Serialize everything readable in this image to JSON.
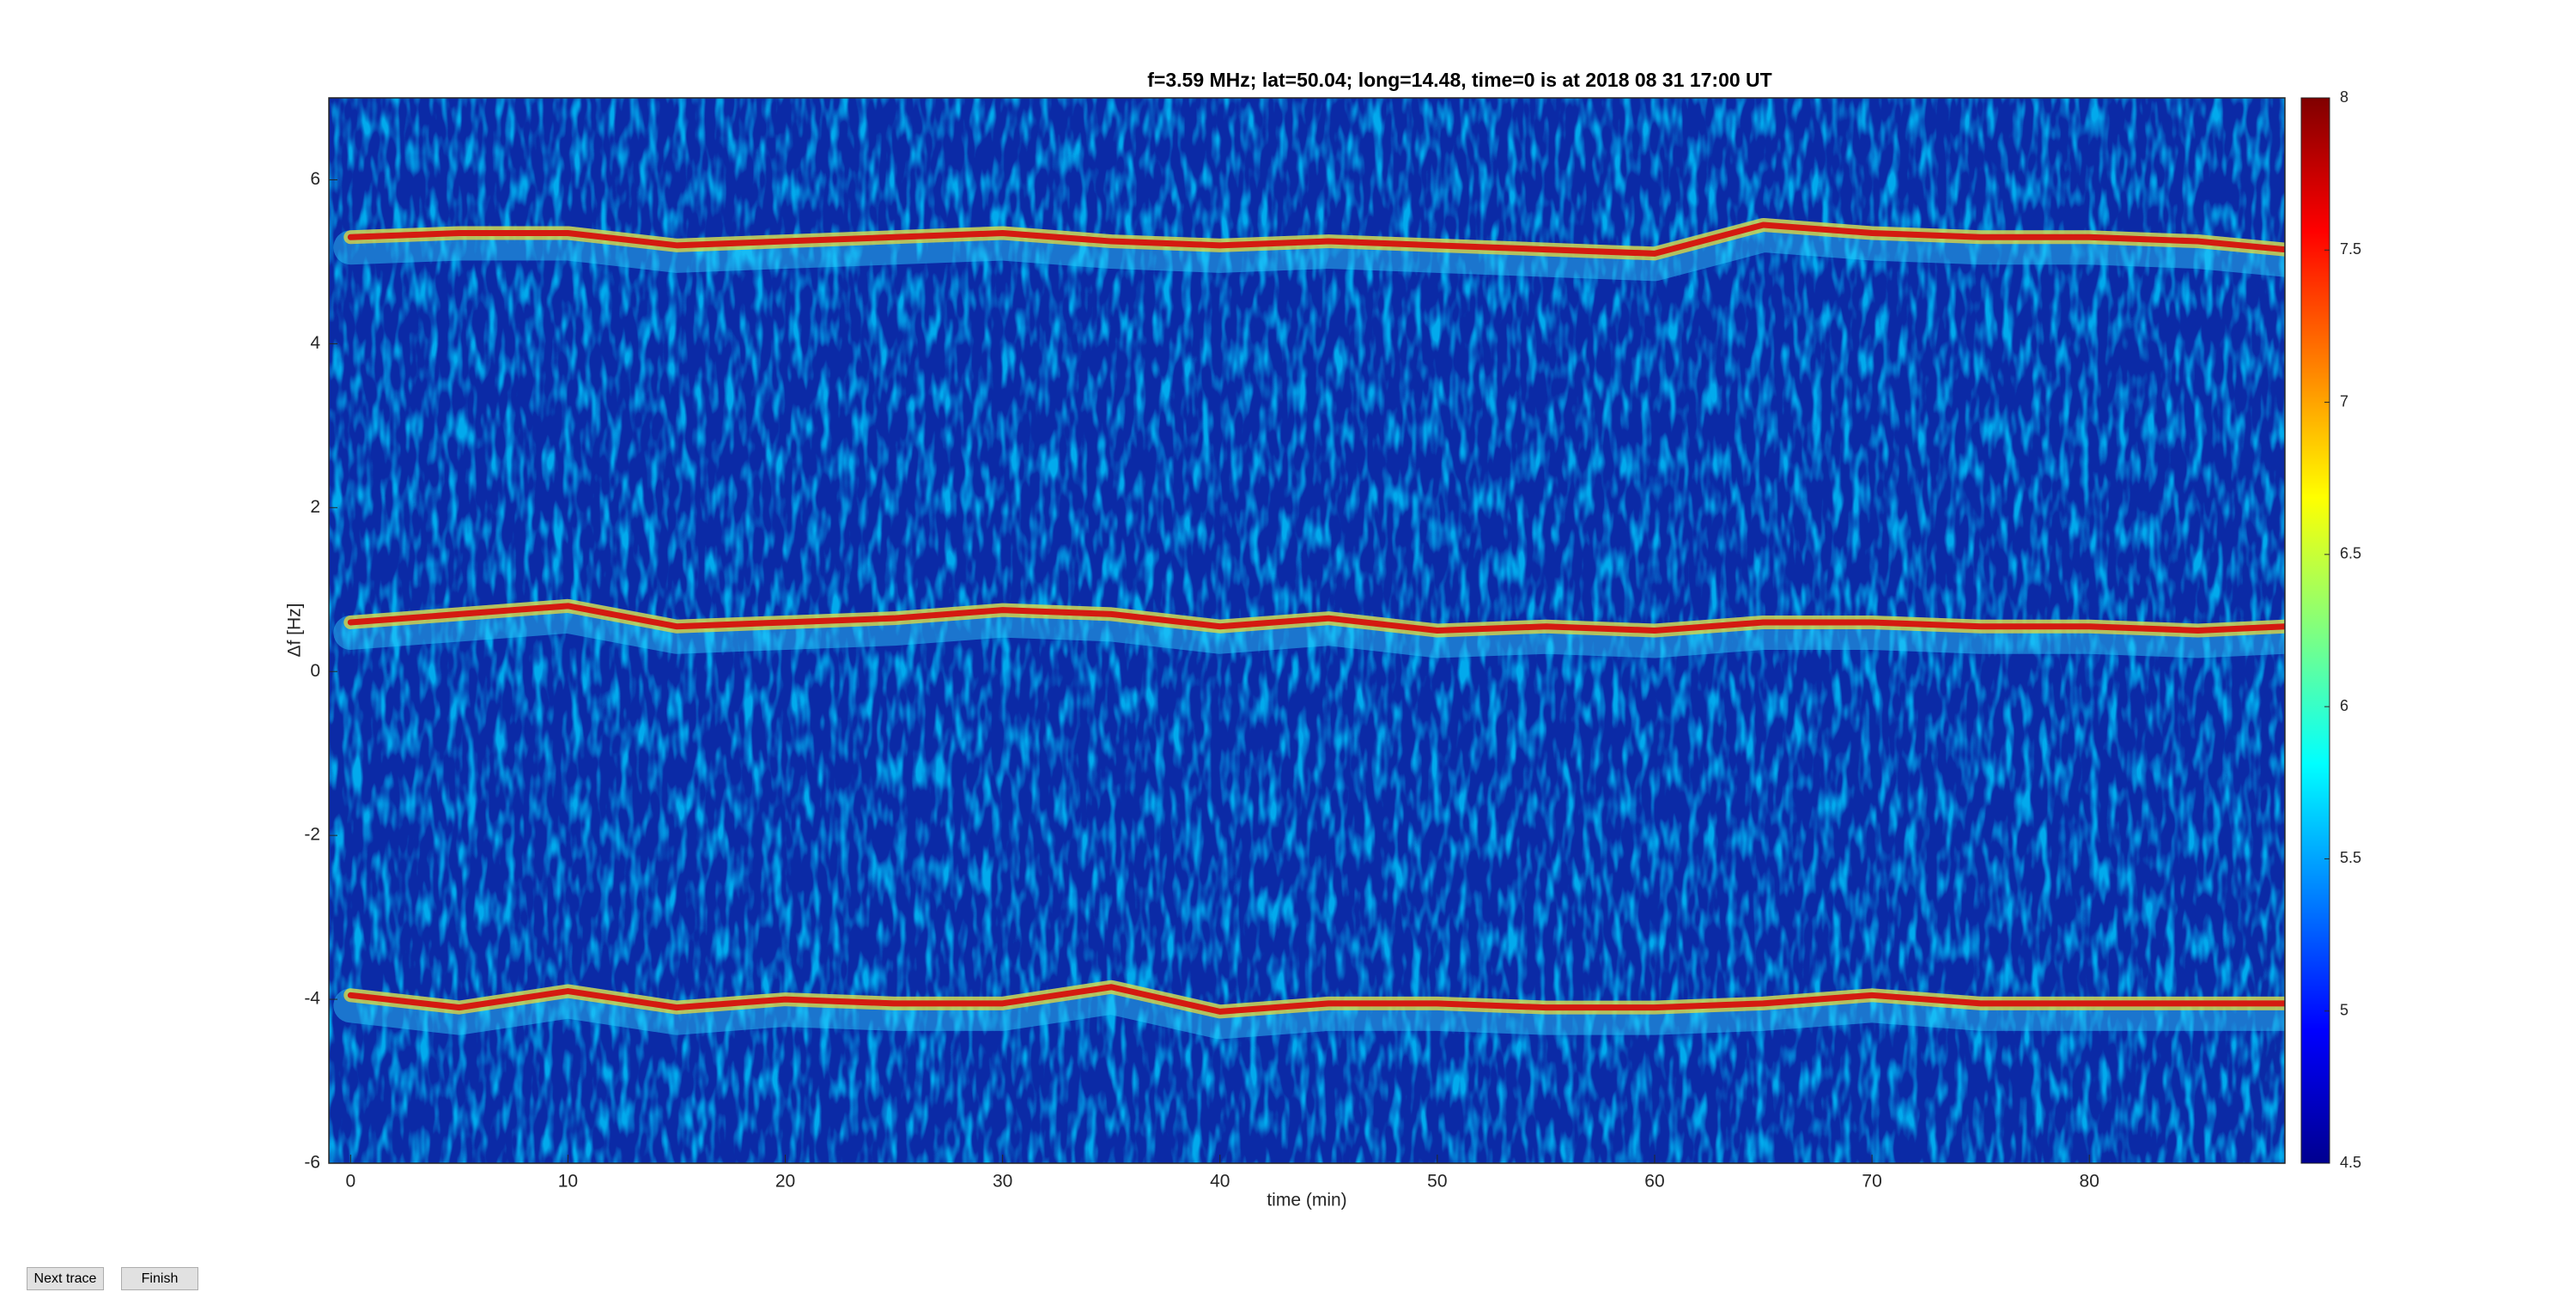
{
  "chart_data": {
    "type": "spectrogram",
    "title": "f=3.59 MHz;  lat=50.04; long=14.48, time=0 is at 2018 08 31 17:00 UT",
    "xlabel": "time (min)",
    "ylabel": "Δf [Hz]",
    "x": [
      0,
      5,
      10,
      15,
      20,
      25,
      30,
      35,
      40,
      45,
      50,
      55,
      60,
      65,
      70,
      75,
      80,
      85,
      89
    ],
    "series": [
      {
        "color": "#d41a10",
        "values": [
          5.3,
          5.35,
          5.35,
          5.2,
          5.25,
          5.3,
          5.35,
          5.25,
          5.2,
          5.25,
          5.2,
          5.15,
          5.1,
          5.45,
          5.35,
          5.3,
          5.3,
          5.25,
          5.15
        ]
      },
      {
        "color": "#d41a10",
        "values": [
          0.6,
          0.7,
          0.8,
          0.55,
          0.6,
          0.65,
          0.75,
          0.7,
          0.55,
          0.65,
          0.5,
          0.55,
          0.5,
          0.6,
          0.6,
          0.55,
          0.55,
          0.5,
          0.55
        ]
      },
      {
        "color": "#d41a10",
        "values": [
          -3.95,
          -4.1,
          -3.9,
          -4.1,
          -4.0,
          -4.05,
          -4.05,
          -3.85,
          -4.15,
          -4.05,
          -4.05,
          -4.1,
          -4.1,
          -4.05,
          -3.95,
          -4.05,
          -4.05,
          -4.05,
          -4.05
        ]
      }
    ],
    "xlim": [
      -1,
      89
    ],
    "xticks": [
      0,
      10,
      20,
      30,
      40,
      50,
      60,
      70,
      80
    ],
    "ylim": [
      -6,
      7
    ],
    "yticks": [
      -6,
      -4,
      -2,
      0,
      2,
      4,
      6
    ],
    "clim": [
      4.5,
      8
    ],
    "cticks": [
      4.5,
      5,
      5.5,
      6,
      6.5,
      7,
      7.5,
      8
    ]
  },
  "buttons": [
    {
      "label": "Next trace"
    },
    {
      "label": "Finish"
    }
  ]
}
